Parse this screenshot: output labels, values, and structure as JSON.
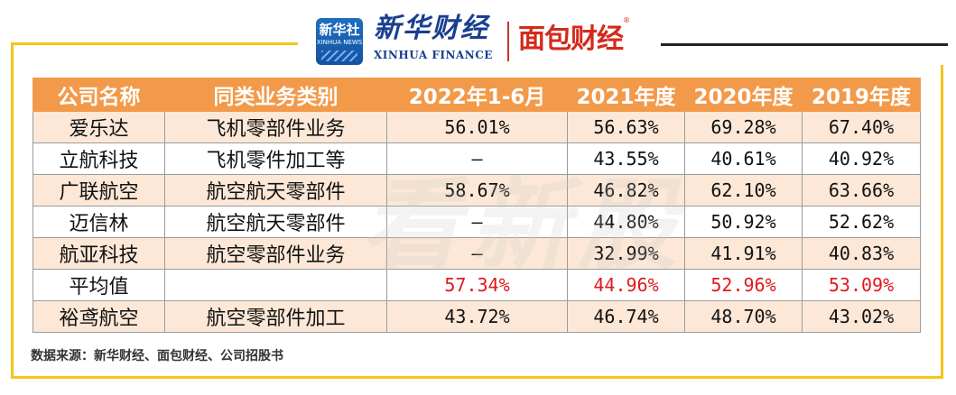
{
  "logos": {
    "xinhua_badge": [
      "新华社",
      "XINHUA NEWS"
    ],
    "xinhua_name": "新华财经",
    "xinhua_sub": "XINHUA FINANCE",
    "mianbao_name": "面包财经",
    "mianbao_reg": "®"
  },
  "watermark": "看新股",
  "table": {
    "headers": [
      "公司名称",
      "同类业务类别",
      "2022年1-6月",
      "2021年度",
      "2020年度",
      "2019年度"
    ],
    "rows": [
      {
        "name": "爱乐达",
        "category": "飞机零部件业务",
        "v2022h1": "56.01%",
        "v2021": "56.63%",
        "v2020": "69.28%",
        "v2019": "67.40%"
      },
      {
        "name": "立航科技",
        "category": "飞机零件加工等",
        "v2022h1": "–",
        "v2021": "43.55%",
        "v2020": "40.61%",
        "v2019": "40.92%"
      },
      {
        "name": "广联航空",
        "category": "航空航天零部件",
        "v2022h1": "58.67%",
        "v2021": "46.82%",
        "v2020": "62.10%",
        "v2019": "63.66%"
      },
      {
        "name": "迈信林",
        "category": "航空航天零部件",
        "v2022h1": "–",
        "v2021": "44.80%",
        "v2020": "50.92%",
        "v2019": "52.62%"
      },
      {
        "name": "航亚科技",
        "category": "航空零部件业务",
        "v2022h1": "–",
        "v2021": "32.99%",
        "v2020": "41.91%",
        "v2019": "40.83%"
      },
      {
        "name": "平均值",
        "category": "",
        "v2022h1": "57.34%",
        "v2021": "44.96%",
        "v2020": "52.96%",
        "v2019": "53.09%",
        "highlight": true
      },
      {
        "name": "裕鸢航空",
        "category": "航空零部件加工",
        "v2022h1": "43.72%",
        "v2021": "46.74%",
        "v2020": "48.70%",
        "v2019": "43.02%"
      }
    ]
  },
  "source": "数据来源：新华财经、面包财经、公司招股书",
  "colors": {
    "header_bg": "#f29a4a",
    "stripe_bg": "#fde8d7",
    "frame": "#f5c518",
    "highlight_text": "#e0191b"
  }
}
